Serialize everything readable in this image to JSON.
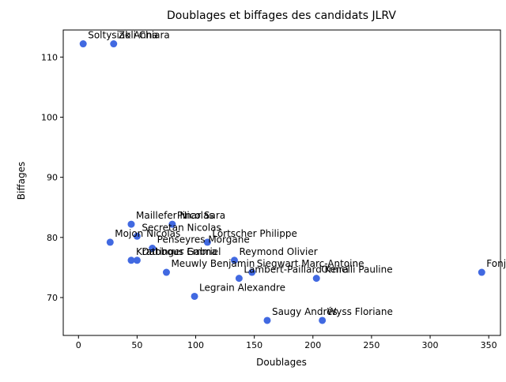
{
  "chart_data": {
    "type": "scatter",
    "title": "Doublages et biffages des candidats JLRV",
    "xlabel": "Doublages",
    "ylabel": "Biffages",
    "xlim": [
      -13,
      360
    ],
    "ylim": [
      63.7,
      114.5
    ],
    "xticks": [
      0,
      50,
      100,
      150,
      200,
      250,
      300,
      350
    ],
    "yticks": [
      70,
      80,
      90,
      100,
      110
    ],
    "grid": false,
    "marker_color": "#4169e1",
    "points": [
      {
        "label": "Soltysiak Anna",
        "x": 4,
        "y": 112.2
      },
      {
        "label": "Zoli Chiara",
        "x": 30,
        "y": 112.2
      },
      {
        "label": "Maillefer Nicolas",
        "x": 45,
        "y": 82.2
      },
      {
        "label": "Pinar Sara",
        "x": 80,
        "y": 82.2
      },
      {
        "label": "Secretan Nicolas",
        "x": 50,
        "y": 80.2
      },
      {
        "label": "Mojon Nicolas",
        "x": 27,
        "y": 79.2
      },
      {
        "label": "Lörtscher Philippe",
        "x": 110,
        "y": 79.2
      },
      {
        "label": "Penseyres Morgane",
        "x": 63,
        "y": 78.2
      },
      {
        "label": "Krattinger Gabriel",
        "x": 45,
        "y": 76.2
      },
      {
        "label": "Dabbous Emma",
        "x": 50,
        "y": 76.2
      },
      {
        "label": "Reymond Olivier",
        "x": 133,
        "y": 76.2
      },
      {
        "label": "Meuwly Benjamin",
        "x": 75,
        "y": 74.2
      },
      {
        "label": "Siegwart Marc-Antoine",
        "x": 148,
        "y": 74.2
      },
      {
        "label": "Fonjallaz",
        "x": 344,
        "y": 74.2
      },
      {
        "label": "Lambert-Paillard Keira",
        "x": 137,
        "y": 73.2
      },
      {
        "label": "Ormelli Pauline",
        "x": 203,
        "y": 73.2
      },
      {
        "label": "Legrain Alexandre",
        "x": 99,
        "y": 70.2
      },
      {
        "label": "Saugy Andrés",
        "x": 161,
        "y": 66.2
      },
      {
        "label": "Wyss Floriane",
        "x": 208,
        "y": 66.2
      }
    ]
  }
}
